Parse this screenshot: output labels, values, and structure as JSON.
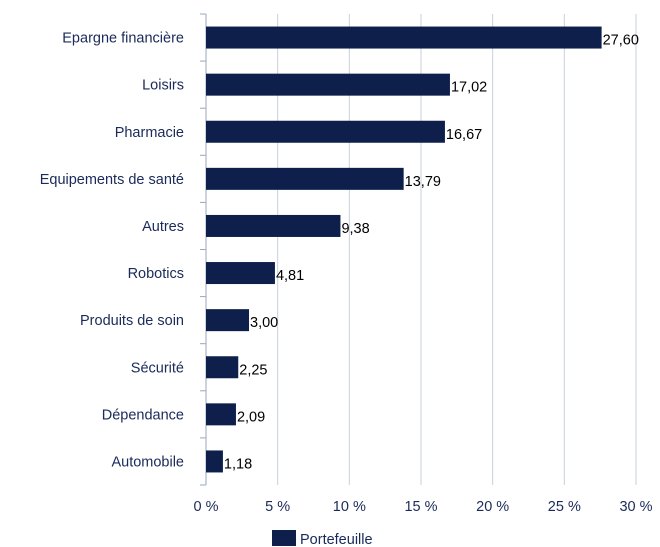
{
  "chart_data": {
    "type": "bar",
    "orientation": "horizontal",
    "categories": [
      "Epargne financière",
      "Loisirs",
      "Pharmacie",
      "Equipements de santé",
      "Autres",
      "Robotics",
      "Produits de soin",
      "Sécurité",
      "Dépendance",
      "Automobile"
    ],
    "series": [
      {
        "name": "Portefeuille",
        "values": [
          27.6,
          17.02,
          16.67,
          13.79,
          9.38,
          4.81,
          3.0,
          2.25,
          2.09,
          1.18
        ],
        "data_labels": [
          "27,60",
          "17,02",
          "16,67",
          "13,79",
          "9,38",
          "4,81",
          "3,00",
          "2,25",
          "2,09",
          "1,18"
        ]
      }
    ],
    "xlim": [
      0,
      30
    ],
    "x_ticks": [
      0,
      5,
      10,
      15,
      20,
      25,
      30
    ],
    "x_tick_labels": [
      "0 %",
      "5 %",
      "10 %",
      "15 %",
      "20 %",
      "25 %",
      "30 %"
    ],
    "grid": "vertical",
    "legend_position": "bottom",
    "colors": {
      "bar": "#0d1f4a",
      "grid": "#c7d0dc",
      "axis": "#9aa7b8",
      "label": "#1a2a5a"
    }
  }
}
